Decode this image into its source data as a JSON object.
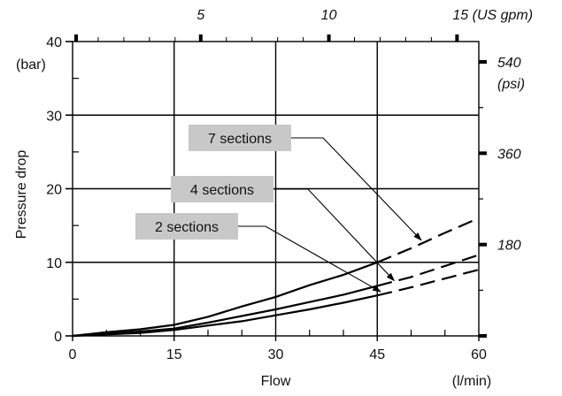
{
  "chart_data": {
    "type": "line",
    "xlabel": "Flow",
    "xunit": "(l/min)",
    "ylabel": "Pressure drop",
    "yunit": "(bar)",
    "xlim": [
      0,
      60
    ],
    "ylim": [
      0,
      40
    ],
    "grid": true,
    "x_ticks": [
      {
        "value": 0,
        "label": "0"
      },
      {
        "value": 15,
        "label": "15"
      },
      {
        "value": 30,
        "label": "30"
      },
      {
        "value": 45,
        "label": "45"
      },
      {
        "value": 60,
        "label": "60"
      }
    ],
    "y_ticks": [
      {
        "value": 0,
        "label": "0"
      },
      {
        "value": 10,
        "label": "10"
      },
      {
        "value": 20,
        "label": "20"
      },
      {
        "value": 30,
        "label": "30"
      },
      {
        "value": 40,
        "label": "40"
      }
    ],
    "secondary_x": {
      "ticks": [
        {
          "value": 5,
          "label": "5"
        },
        {
          "value": 10,
          "label": "10"
        },
        {
          "value": 15,
          "label": "15 (US gpm)"
        }
      ],
      "per_primary_unit": 0.264172
    },
    "secondary_y": {
      "unit": "(psi)",
      "ticks": [
        {
          "value": 180,
          "label": "180"
        },
        {
          "value": 360,
          "label": "360"
        },
        {
          "value": 540,
          "label": "540"
        }
      ],
      "per_primary_unit": 14.5038
    },
    "series": [
      {
        "name": "7 sections",
        "solid": [
          [
            0,
            0
          ],
          [
            5,
            0.5
          ],
          [
            10,
            0.9
          ],
          [
            15,
            1.5
          ],
          [
            20,
            2.6
          ],
          [
            25,
            4.0
          ],
          [
            30,
            5.3
          ],
          [
            35,
            6.9
          ],
          [
            40,
            8.3
          ],
          [
            45,
            10.0
          ]
        ],
        "dashed": [
          [
            45,
            10.0
          ],
          [
            50,
            11.9
          ],
          [
            55,
            14.0
          ],
          [
            60,
            16.0
          ]
        ]
      },
      {
        "name": "4 sections",
        "solid": [
          [
            0,
            0
          ],
          [
            5,
            0.3
          ],
          [
            10,
            0.6
          ],
          [
            15,
            1.0
          ],
          [
            20,
            1.8
          ],
          [
            25,
            2.7
          ],
          [
            30,
            3.6
          ],
          [
            35,
            4.6
          ],
          [
            40,
            5.6
          ],
          [
            45,
            6.8
          ]
        ],
        "dashed": [
          [
            45,
            6.8
          ],
          [
            50,
            8.0
          ],
          [
            55,
            9.5
          ],
          [
            60,
            11.0
          ]
        ]
      },
      {
        "name": "2 sections",
        "solid": [
          [
            0,
            0
          ],
          [
            5,
            0.2
          ],
          [
            10,
            0.4
          ],
          [
            15,
            0.8
          ],
          [
            20,
            1.4
          ],
          [
            25,
            2.0
          ],
          [
            30,
            2.8
          ],
          [
            35,
            3.6
          ],
          [
            40,
            4.5
          ],
          [
            45,
            5.5
          ]
        ],
        "dashed": [
          [
            45,
            5.5
          ],
          [
            50,
            6.6
          ],
          [
            55,
            7.8
          ],
          [
            60,
            9.0
          ]
        ]
      }
    ],
    "annotations": [
      {
        "series": "7 sections",
        "label": "7 sections",
        "target": [
          51.5,
          13.0
        ]
      },
      {
        "series": "4 sections",
        "label": "4 sections",
        "target": [
          47.5,
          7.5
        ]
      },
      {
        "series": "2 sections",
        "label": "2 sections",
        "target": [
          45.5,
          6.0
        ]
      }
    ]
  }
}
